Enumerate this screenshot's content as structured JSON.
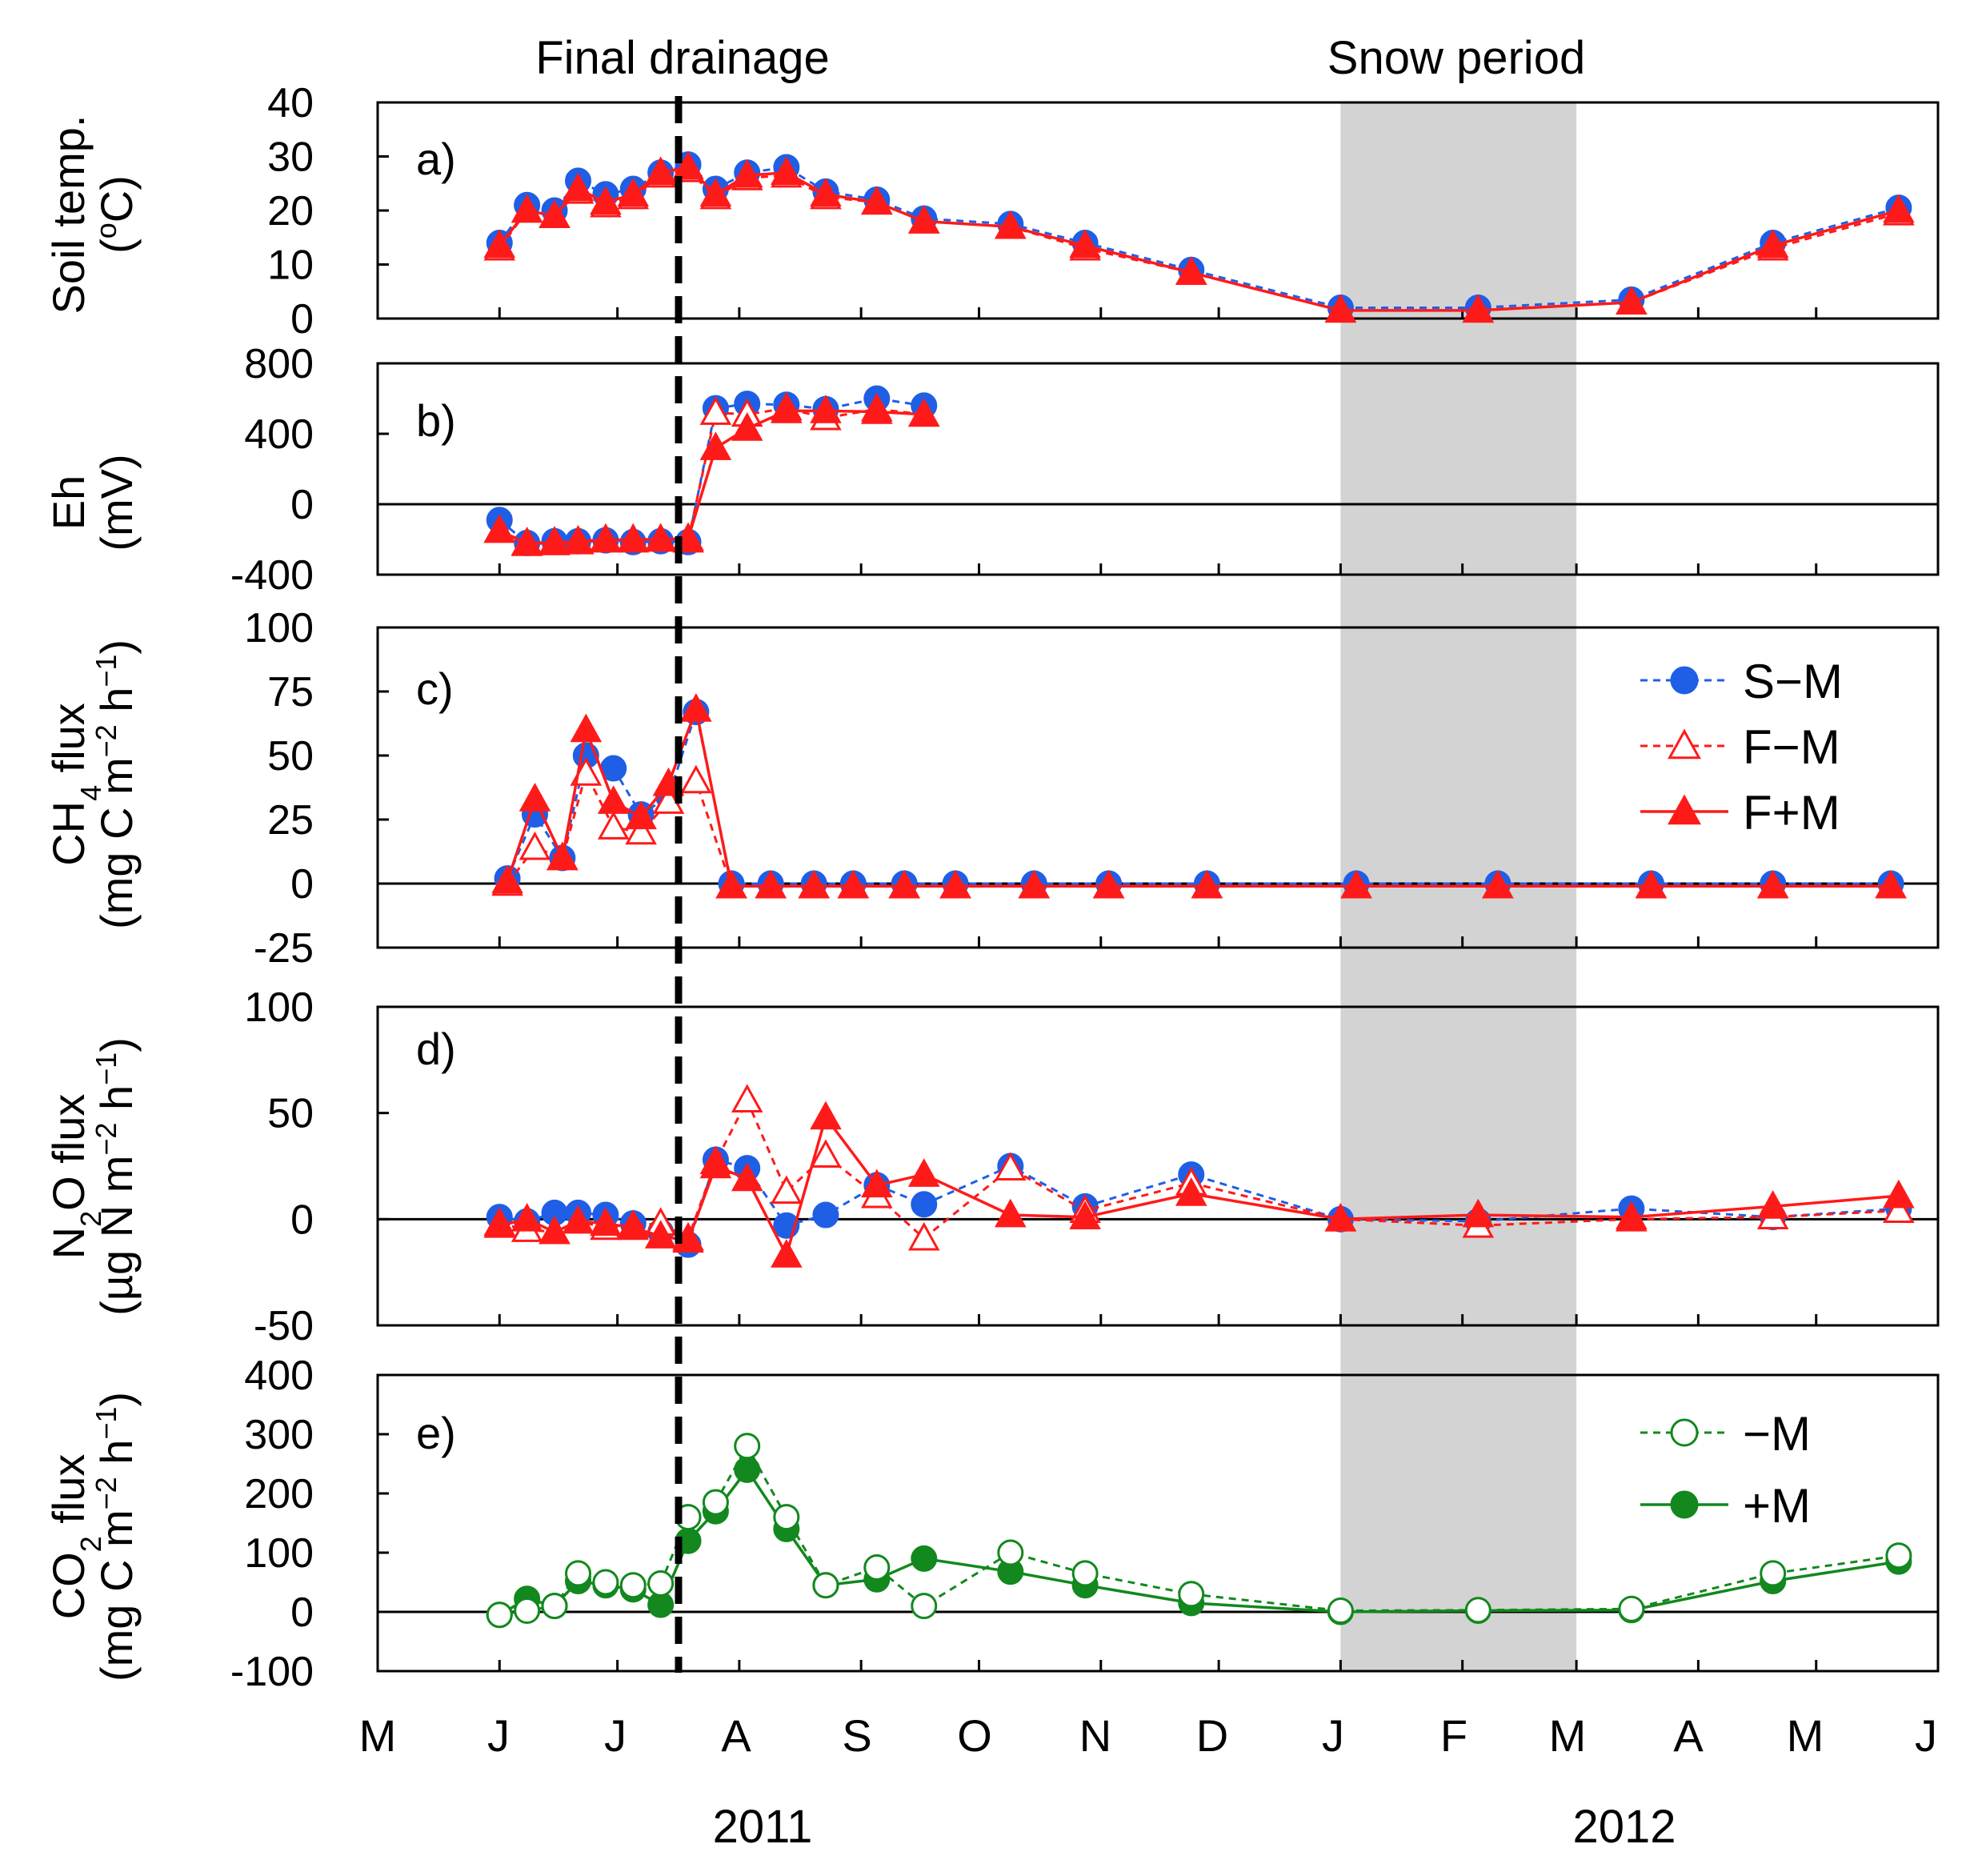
{
  "header": {
    "final_drainage": "Final drainage",
    "snow_period": "Snow period"
  },
  "x_axis": {
    "months": [
      "M",
      "J",
      "J",
      "A",
      "S",
      "O",
      "N",
      "D",
      "J",
      "F",
      "M",
      "A",
      "M",
      "J"
    ],
    "years": [
      "2011",
      "2012"
    ]
  },
  "colors": {
    "blue": "#1f5fe6",
    "red": "#ff1a1a",
    "green": "#12881e",
    "snow": "#d3d3d3"
  },
  "panels": [
    {
      "label": "a)",
      "ylabel1": "Soil temp.",
      "ylabel2": "(°C)",
      "ticks": [
        "40",
        "30",
        "20",
        "10",
        "0"
      ]
    },
    {
      "label": "b)",
      "ylabel1": "Eh",
      "ylabel2": "(mV)",
      "ticks": [
        "800",
        "400",
        "0",
        "-400"
      ]
    },
    {
      "label": "c)",
      "ylabel1": "CH4 flux",
      "ylabel2": "(mg C m-2 h-1)",
      "ticks": [
        "100",
        "75",
        "50",
        "25",
        "0",
        "-25"
      ],
      "legend": [
        "S−M",
        "F−M",
        "F+M"
      ]
    },
    {
      "label": "d)",
      "ylabel1": "N2O flux",
      "ylabel2": "(µg N m-2 h-1)",
      "ticks": [
        "100",
        "50",
        "0",
        "-50"
      ]
    },
    {
      "label": "e)",
      "ylabel1": "CO2 flux",
      "ylabel2": "(mg C m-2 h-1)",
      "ticks": [
        "400",
        "300",
        "200",
        "100",
        "0",
        "-100"
      ],
      "legend": [
        "−M",
        "+M"
      ]
    }
  ],
  "chart_data": [
    {
      "type": "line",
      "title": "a)",
      "ylabel": "Soil temp. (°C)",
      "ylim": [
        0,
        40
      ],
      "x_axis_range": [
        "2011-05-01",
        "2012-06-01"
      ],
      "series": [
        {
          "name": "S−M",
          "x": [
            "2011-06-01",
            "2011-06-08",
            "2011-06-15",
            "2011-06-21",
            "2011-06-28",
            "2011-07-05",
            "2011-07-12",
            "2011-07-19",
            "2011-07-26",
            "2011-08-03",
            "2011-08-13",
            "2011-08-23",
            "2011-09-05",
            "2011-09-17",
            "2011-10-09",
            "2011-10-28",
            "2011-11-24",
            "2012-01-01",
            "2012-02-05",
            "2012-03-15",
            "2012-04-20",
            "2012-05-22"
          ],
          "y": [
            14,
            21,
            20,
            25.5,
            23,
            24,
            27,
            28.5,
            24,
            27,
            28,
            23.5,
            22,
            18.5,
            17.5,
            14,
            9,
            2,
            2,
            3.5,
            14,
            20.5
          ]
        },
        {
          "name": "F−M",
          "x": [
            "2011-06-01",
            "2011-06-08",
            "2011-06-15",
            "2011-06-21",
            "2011-06-28",
            "2011-07-05",
            "2011-07-12",
            "2011-07-19",
            "2011-07-26",
            "2011-08-03",
            "2011-08-13",
            "2011-08-23",
            "2011-09-05",
            "2011-09-17",
            "2011-10-09",
            "2011-10-28",
            "2011-11-24",
            "2012-01-01",
            "2012-02-05",
            "2012-03-15",
            "2012-04-20",
            "2012-05-22"
          ],
          "y": [
            13,
            20,
            19,
            23.5,
            21,
            22.5,
            26.5,
            27.5,
            22.5,
            26,
            26.5,
            22.5,
            21.5,
            18,
            17,
            13,
            8.5,
            1.5,
            1.5,
            3,
            13,
            19.5
          ]
        },
        {
          "name": "F+M",
          "x": [
            "2011-06-01",
            "2011-06-08",
            "2011-06-15",
            "2011-06-21",
            "2011-06-28",
            "2011-07-05",
            "2011-07-12",
            "2011-07-19",
            "2011-07-26",
            "2011-08-03",
            "2011-08-13",
            "2011-08-23",
            "2011-09-05",
            "2011-09-17",
            "2011-10-09",
            "2011-10-28",
            "2011-11-24",
            "2012-01-01",
            "2012-02-05",
            "2012-03-15",
            "2012-04-20",
            "2012-05-22"
          ],
          "y": [
            13.5,
            20,
            19,
            24,
            21.5,
            23,
            27,
            28,
            23,
            26.5,
            27,
            23,
            21.5,
            18,
            17,
            13.5,
            8.5,
            1.5,
            1.5,
            3,
            13.5,
            20
          ]
        }
      ]
    },
    {
      "type": "line",
      "title": "b)",
      "ylabel": "Eh (mV)",
      "ylim": [
        -400,
        800
      ],
      "x_axis_range": [
        "2011-05-01",
        "2012-06-01"
      ],
      "series": [
        {
          "name": "S−M",
          "x": [
            "2011-06-01",
            "2011-06-08",
            "2011-06-15",
            "2011-06-21",
            "2011-06-28",
            "2011-07-05",
            "2011-07-12",
            "2011-07-19",
            "2011-07-26",
            "2011-08-03",
            "2011-08-13",
            "2011-08-23",
            "2011-09-05",
            "2011-09-17"
          ],
          "y": [
            -90,
            -220,
            -210,
            -210,
            -205,
            -215,
            -210,
            -215,
            545,
            570,
            565,
            540,
            600,
            560
          ]
        },
        {
          "name": "F−M",
          "x": [
            "2011-06-01",
            "2011-06-08",
            "2011-06-15",
            "2011-06-21",
            "2011-06-28",
            "2011-07-05",
            "2011-07-12",
            "2011-07-19",
            "2011-07-26",
            "2011-08-03",
            "2011-08-13",
            "2011-08-23",
            "2011-09-05",
            "2011-09-17"
          ],
          "y": [
            -150,
            -220,
            -215,
            -210,
            -200,
            -205,
            -200,
            -205,
            520,
            510,
            545,
            490,
            540,
            510
          ]
        },
        {
          "name": "F+M",
          "x": [
            "2011-06-01",
            "2011-06-08",
            "2011-06-15",
            "2011-06-21",
            "2011-06-28",
            "2011-07-05",
            "2011-07-12",
            "2011-07-19",
            "2011-07-26",
            "2011-08-03",
            "2011-08-13",
            "2011-08-23",
            "2011-09-05",
            "2011-09-17"
          ],
          "y": [
            -150,
            -225,
            -220,
            -215,
            -205,
            -200,
            -200,
            -195,
            320,
            430,
            530,
            530,
            525,
            510
          ]
        }
      ]
    },
    {
      "type": "line",
      "title": "c)",
      "ylabel": "CH4 flux (mg C m-2 h-1)",
      "ylim": [
        -25,
        100
      ],
      "legend_position": "top-right",
      "x_axis_range": [
        "2011-05-01",
        "2012-06-01"
      ],
      "series": [
        {
          "name": "S−M",
          "x": [
            "2011-06-03",
            "2011-06-10",
            "2011-06-17",
            "2011-06-23",
            "2011-06-30",
            "2011-07-07",
            "2011-07-14",
            "2011-07-21",
            "2011-07-30",
            "2011-08-09",
            "2011-08-20",
            "2011-08-30",
            "2011-09-12",
            "2011-09-25",
            "2011-10-15",
            "2011-11-03",
            "2011-11-28",
            "2012-01-05",
            "2012-02-10",
            "2012-03-20",
            "2012-04-20",
            "2012-05-20"
          ],
          "y": [
            2,
            27,
            10,
            50,
            45,
            27,
            34,
            67,
            0,
            0,
            0,
            0,
            0,
            0,
            0,
            0,
            0,
            0,
            0,
            0,
            0,
            0
          ]
        },
        {
          "name": "F−M",
          "x": [
            "2011-06-03",
            "2011-06-10",
            "2011-06-17",
            "2011-06-23",
            "2011-06-30",
            "2011-07-07",
            "2011-07-14",
            "2011-07-21",
            "2011-07-30",
            "2011-08-09",
            "2011-08-20",
            "2011-08-30",
            "2011-09-12",
            "2011-09-25",
            "2011-10-15",
            "2011-11-03",
            "2011-11-28",
            "2012-01-05",
            "2012-02-10",
            "2012-03-20",
            "2012-04-20",
            "2012-05-20"
          ],
          "y": [
            0,
            14,
            10,
            43,
            22,
            20,
            32,
            40,
            -1,
            -1,
            -1,
            -1,
            -1,
            -1,
            -1,
            -1,
            -1,
            -1,
            -1,
            -1,
            -1,
            -1
          ]
        },
        {
          "name": "F+M",
          "x": [
            "2011-06-03",
            "2011-06-10",
            "2011-06-17",
            "2011-06-23",
            "2011-06-30",
            "2011-07-07",
            "2011-07-14",
            "2011-07-21",
            "2011-07-30",
            "2011-08-09",
            "2011-08-20",
            "2011-08-30",
            "2011-09-12",
            "2011-09-25",
            "2011-10-15",
            "2011-11-03",
            "2011-11-28",
            "2012-01-05",
            "2012-02-10",
            "2012-03-20",
            "2012-04-20",
            "2012-05-20"
          ],
          "y": [
            1,
            33,
            10,
            60,
            32,
            26,
            39,
            68,
            -1,
            -1,
            -1,
            -1,
            -1,
            -1,
            -1,
            -1,
            -1,
            -1,
            -1,
            -1,
            -1,
            -1
          ]
        }
      ]
    },
    {
      "type": "line",
      "title": "d)",
      "ylabel": "N2O flux (µg N m-2 h-1)",
      "ylim": [
        -50,
        100
      ],
      "x_axis_range": [
        "2011-05-01",
        "2012-06-01"
      ],
      "series": [
        {
          "name": "S−M",
          "x": [
            "2011-06-01",
            "2011-06-08",
            "2011-06-15",
            "2011-06-21",
            "2011-06-28",
            "2011-07-05",
            "2011-07-12",
            "2011-07-19",
            "2011-07-26",
            "2011-08-03",
            "2011-08-13",
            "2011-08-23",
            "2011-09-05",
            "2011-09-17",
            "2011-10-09",
            "2011-10-28",
            "2011-11-24",
            "2012-01-01",
            "2012-02-05",
            "2012-03-15",
            "2012-04-20",
            "2012-05-22"
          ],
          "y": [
            1,
            -1,
            3,
            3,
            2,
            -2,
            -6,
            -12,
            28,
            24,
            -3,
            2,
            16,
            7,
            25,
            6,
            21,
            0,
            -1,
            5,
            1,
            5
          ]
        },
        {
          "name": "F−M",
          "x": [
            "2011-06-01",
            "2011-06-08",
            "2011-06-15",
            "2011-06-21",
            "2011-06-28",
            "2011-07-05",
            "2011-07-12",
            "2011-07-19",
            "2011-07-26",
            "2011-08-03",
            "2011-08-13",
            "2011-08-23",
            "2011-09-05",
            "2011-09-17",
            "2011-10-09",
            "2011-10-28",
            "2011-11-24",
            "2012-01-01",
            "2012-02-05",
            "2012-03-15",
            "2012-04-20",
            "2012-05-22"
          ],
          "y": [
            -2,
            -5,
            -6,
            -1,
            -4,
            -3,
            -2,
            -9,
            27,
            56,
            13,
            30,
            11,
            -9,
            24,
            4,
            17,
            0,
            -3,
            0,
            1,
            4
          ]
        },
        {
          "name": "F+M",
          "x": [
            "2011-06-01",
            "2011-06-08",
            "2011-06-15",
            "2011-06-21",
            "2011-06-28",
            "2011-07-05",
            "2011-07-12",
            "2011-07-19",
            "2011-07-26",
            "2011-08-03",
            "2011-08-13",
            "2011-08-23",
            "2011-09-05",
            "2011-09-17",
            "2011-10-09",
            "2011-10-28",
            "2011-11-24",
            "2012-01-01",
            "2012-02-05",
            "2012-03-15",
            "2012-04-20",
            "2012-05-22"
          ],
          "y": [
            -3,
            0,
            -6,
            -1,
            -2,
            -4,
            -8,
            -10,
            25,
            19,
            -17,
            48,
            16,
            21,
            2,
            1,
            12,
            0,
            2,
            1,
            6,
            11
          ]
        }
      ]
    },
    {
      "type": "line",
      "title": "e)",
      "ylabel": "CO2 flux (mg C m-2 h-1)",
      "ylim": [
        -100,
        400
      ],
      "legend_position": "top-right",
      "x_axis_range": [
        "2011-05-01",
        "2012-06-01"
      ],
      "series": [
        {
          "name": "−M",
          "x": [
            "2011-06-01",
            "2011-06-08",
            "2011-06-15",
            "2011-06-21",
            "2011-06-28",
            "2011-07-05",
            "2011-07-12",
            "2011-07-19",
            "2011-07-26",
            "2011-08-03",
            "2011-08-13",
            "2011-08-23",
            "2011-09-05",
            "2011-09-17",
            "2011-10-09",
            "2011-10-28",
            "2011-11-24",
            "2012-01-01",
            "2012-02-05",
            "2012-03-15",
            "2012-04-20",
            "2012-05-22"
          ],
          "y": [
            -5,
            2,
            10,
            65,
            50,
            45,
            48,
            160,
            185,
            280,
            160,
            45,
            75,
            10,
            100,
            65,
            30,
            2,
            3,
            5,
            65,
            95
          ]
        },
        {
          "name": "+M",
          "x": [
            "2011-06-01",
            "2011-06-08",
            "2011-06-15",
            "2011-06-21",
            "2011-06-28",
            "2011-07-05",
            "2011-07-12",
            "2011-07-19",
            "2011-07-26",
            "2011-08-03",
            "2011-08-13",
            "2011-08-23",
            "2011-09-05",
            "2011-09-17",
            "2011-10-09",
            "2011-10-28",
            "2011-11-24",
            "2012-01-01",
            "2012-02-05",
            "2012-03-15",
            "2012-04-20",
            "2012-05-22"
          ],
          "y": [
            -5,
            22,
            10,
            52,
            45,
            38,
            12,
            120,
            170,
            240,
            140,
            45,
            55,
            90,
            68,
            45,
            15,
            0,
            2,
            3,
            52,
            85
          ]
        }
      ]
    }
  ]
}
